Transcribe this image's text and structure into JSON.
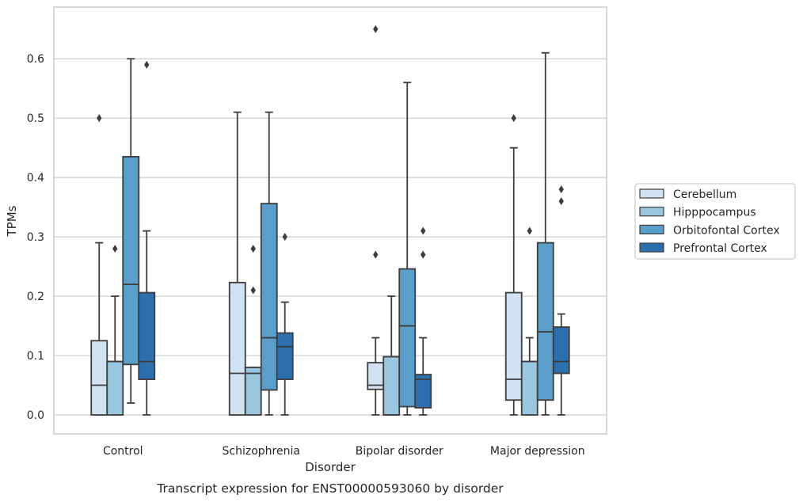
{
  "chart_data": {
    "type": "boxplot",
    "title": "",
    "caption": "Transcript expression for ENST00000593060 by disorder",
    "xlabel": "Disorder",
    "ylabel": "TPMs",
    "ylim": [
      -0.032,
      0.687
    ],
    "yticks": [
      0.0,
      0.1,
      0.2,
      0.3,
      0.4,
      0.5,
      0.6
    ],
    "ytick_labels": [
      "0.0",
      "0.1",
      "0.2",
      "0.3",
      "0.4",
      "0.5",
      "0.6"
    ],
    "grid": "horizontal",
    "legend_position": "right",
    "categories": [
      "Control",
      "Schizophrenia",
      "Bipolar disorder",
      "Major depression"
    ],
    "series": [
      {
        "name": "Cerebellum",
        "color": "#d1e2f2",
        "boxes": [
          {
            "whislo": 0.0,
            "q1": 0.0,
            "med": 0.05,
            "q3": 0.125,
            "whishi": 0.29,
            "fliers": [
              0.5
            ]
          },
          {
            "whislo": 0.0,
            "q1": 0.0,
            "med": 0.07,
            "q3": 0.223,
            "whishi": 0.51,
            "fliers": []
          },
          {
            "whislo": 0.0,
            "q1": 0.043,
            "med": 0.05,
            "q3": 0.088,
            "whishi": 0.13,
            "fliers": [
              0.27,
              0.65
            ]
          },
          {
            "whislo": 0.0,
            "q1": 0.025,
            "med": 0.06,
            "q3": 0.206,
            "whishi": 0.45,
            "fliers": [
              0.5
            ]
          }
        ]
      },
      {
        "name": "Hipppocampus",
        "color": "#9ac7df",
        "boxes": [
          {
            "whislo": 0.0,
            "q1": 0.0,
            "med": 0.09,
            "q3": 0.09,
            "whishi": 0.2,
            "fliers": [
              0.28
            ]
          },
          {
            "whislo": 0.0,
            "q1": 0.0,
            "med": 0.07,
            "q3": 0.08,
            "whishi": 0.08,
            "fliers": [
              0.21,
              0.28
            ]
          },
          {
            "whislo": 0.0,
            "q1": 0.0,
            "med": 0.0,
            "q3": 0.098,
            "whishi": 0.2,
            "fliers": []
          },
          {
            "whislo": 0.0,
            "q1": 0.0,
            "med": 0.09,
            "q3": 0.09,
            "whishi": 0.13,
            "fliers": [
              0.31
            ]
          }
        ]
      },
      {
        "name": "Orbitofontal Cortex",
        "color": "#5a9ecb",
        "boxes": [
          {
            "whislo": 0.02,
            "q1": 0.085,
            "med": 0.22,
            "q3": 0.435,
            "whishi": 0.6,
            "fliers": []
          },
          {
            "whislo": 0.0,
            "q1": 0.042,
            "med": 0.13,
            "q3": 0.356,
            "whishi": 0.51,
            "fliers": []
          },
          {
            "whislo": 0.0,
            "q1": 0.014,
            "med": 0.15,
            "q3": 0.246,
            "whishi": 0.56,
            "fliers": []
          },
          {
            "whislo": 0.0,
            "q1": 0.025,
            "med": 0.14,
            "q3": 0.29,
            "whishi": 0.61,
            "fliers": []
          }
        ]
      },
      {
        "name": "Prefrontal Cortex",
        "color": "#2c6fae",
        "boxes": [
          {
            "whislo": 0.0,
            "q1": 0.06,
            "med": 0.09,
            "q3": 0.206,
            "whishi": 0.31,
            "fliers": [
              0.59
            ]
          },
          {
            "whislo": 0.0,
            "q1": 0.06,
            "med": 0.115,
            "q3": 0.138,
            "whishi": 0.19,
            "fliers": [
              0.3
            ]
          },
          {
            "whislo": 0.0,
            "q1": 0.012,
            "med": 0.06,
            "q3": 0.068,
            "whishi": 0.13,
            "fliers": [
              0.27,
              0.31
            ]
          },
          {
            "whislo": 0.0,
            "q1": 0.07,
            "med": 0.09,
            "q3": 0.148,
            "whishi": 0.17,
            "fliers": [
              0.36,
              0.38
            ]
          }
        ]
      }
    ]
  },
  "colors": {
    "box_edge": "#3d3d3d",
    "grid": "#cccccc",
    "frame": "#cccccc",
    "text": "#262626"
  }
}
